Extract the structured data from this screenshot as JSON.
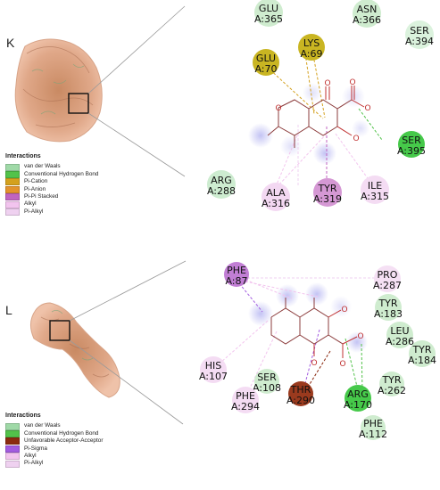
{
  "panels": [
    {
      "label": "K",
      "legend": {
        "title": "Interactions",
        "items": [
          {
            "label": "van der Waals",
            "color": "#9fd9a7"
          },
          {
            "label": "Conventional Hydrogen Bond",
            "color": "#52c24a"
          },
          {
            "label": "Pi-Cation",
            "color": "#d4a11e"
          },
          {
            "label": "Pi-Anion",
            "color": "#e3932d"
          },
          {
            "label": "Pi-Pi Stacked",
            "color": "#c064c0"
          },
          {
            "label": "Alkyl",
            "color": "#f2c4ee"
          },
          {
            "label": "Pi-Alkyl",
            "color": "#efd1f0"
          }
        ]
      },
      "residues": [
        {
          "name": "GLU",
          "num": "A:365",
          "color": "#cfeccf"
        },
        {
          "name": "ASN",
          "num": "A:366",
          "color": "#cfeccf"
        },
        {
          "name": "SER",
          "num": "A:394",
          "color": "#dbf2dd"
        },
        {
          "name": "LYS",
          "num": "A:69",
          "color": "#c9b522"
        },
        {
          "name": "GLU",
          "num": "A:70",
          "color": "#c9b522"
        },
        {
          "name": "SER",
          "num": "A:395",
          "color": "#46c94a"
        },
        {
          "name": "ARG",
          "num": "A:288",
          "color": "#cdecd0"
        },
        {
          "name": "ALA",
          "num": "A:316",
          "color": "#f3d8f2"
        },
        {
          "name": "TYR",
          "num": "A:319",
          "color": "#d598d4"
        },
        {
          "name": "ILE",
          "num": "A:315",
          "color": "#f4dcf3"
        }
      ]
    },
    {
      "label": "L",
      "legend": {
        "title": "Interactions",
        "items": [
          {
            "label": "van der Waals",
            "color": "#9fd9a7"
          },
          {
            "label": "Conventional Hydrogen Bond",
            "color": "#52c24a"
          },
          {
            "label": "Unfavorable Acceptor-Acceptor",
            "color": "#8b2a10"
          },
          {
            "label": "Pi-Sigma",
            "color": "#a25be0"
          },
          {
            "label": "Alkyl",
            "color": "#f2c4ee"
          },
          {
            "label": "Pi-Alkyl",
            "color": "#efd1f0"
          }
        ]
      },
      "residues": [
        {
          "name": "PHE",
          "num": "A:87",
          "color": "#c17ed4"
        },
        {
          "name": "PRO",
          "num": "A:287",
          "color": "#f5e0f4"
        },
        {
          "name": "TYR",
          "num": "A:183",
          "color": "#cfeccf"
        },
        {
          "name": "LEU",
          "num": "A:286",
          "color": "#cfeccf"
        },
        {
          "name": "TYR",
          "num": "A:184",
          "color": "#cfeccf"
        },
        {
          "name": "HIS",
          "num": "A:107",
          "color": "#f4dcf3"
        },
        {
          "name": "SER",
          "num": "A:108",
          "color": "#cfeccf"
        },
        {
          "name": "THR",
          "num": "A:290",
          "color": "#9a3a1e"
        },
        {
          "name": "ARG",
          "num": "A:170",
          "color": "#46c94a"
        },
        {
          "name": "TYR",
          "num": "A:262",
          "color": "#cfeccf"
        },
        {
          "name": "PHE",
          "num": "A:294",
          "color": "#f4dcf3"
        },
        {
          "name": "PHE",
          "num": "A:112",
          "color": "#cfeccf"
        }
      ]
    }
  ],
  "atoms": {
    "oxygen": "O"
  }
}
